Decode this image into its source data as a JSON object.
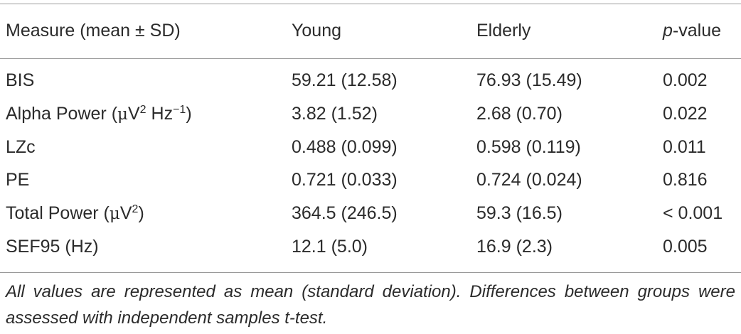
{
  "table": {
    "headers": {
      "measure": "Measure (mean ± SD)",
      "young": "Young",
      "elderly": "Elderly",
      "p_italic": "p",
      "p_rest": "-value"
    },
    "rows": [
      {
        "measure": "BIS",
        "young": "59.21 (12.58)",
        "elderly": "76.93 (15.49)",
        "p": "0.002"
      },
      {
        "measure_prefix": "Alpha Power (",
        "measure_mu": "μ",
        "measure_mid": "V",
        "measure_sup1": "2",
        "measure_mid2": " Hz",
        "measure_sup2": "−1",
        "measure_suffix": ")",
        "young": "3.82 (1.52)",
        "elderly": "2.68 (0.70)",
        "p": "0.022"
      },
      {
        "measure": "LZc",
        "young": "0.488 (0.099)",
        "elderly": "0.598 (0.119)",
        "p": "0.011"
      },
      {
        "measure": "PE",
        "young": "0.721 (0.033)",
        "elderly": "0.724 (0.024)",
        "p": "0.816"
      },
      {
        "measure_prefix": "Total Power (",
        "measure_mu": "μ",
        "measure_mid": "V",
        "measure_sup1": "2",
        "measure_suffix": ")",
        "young": "364.5 (246.5)",
        "elderly": "59.3 (16.5)",
        "p": "< 0.001"
      },
      {
        "measure": "SEF95 (Hz)",
        "young": "12.1 (5.0)",
        "elderly": "16.9 (2.3)",
        "p": "0.005"
      }
    ],
    "footnote": "All values are represented as mean (standard deviation). Differences between groups were assessed with independent samples t-test."
  }
}
